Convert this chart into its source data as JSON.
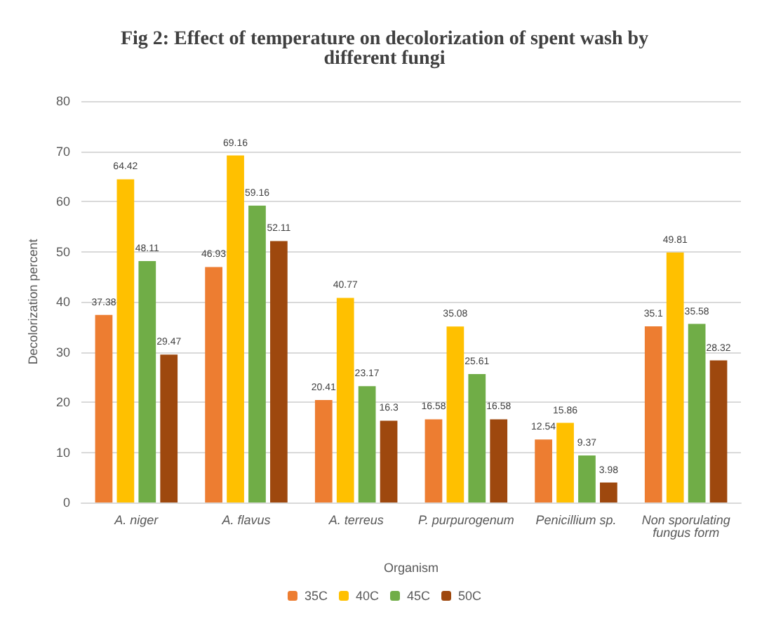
{
  "chart_data": {
    "type": "bar",
    "title": "Fig 2: Effect of temperature on decolorization of spent wash by\ndifferent fungi",
    "xlabel": "Organism",
    "ylabel": "Decolorization percent",
    "categories": [
      "A. niger",
      "A. flavus",
      "A. terreus",
      "P. purpurogenum",
      "Penicillium sp.",
      "Non sporulating\nfungus form"
    ],
    "series": [
      {
        "name": "35C",
        "color": "#ed7d31",
        "values": [
          37.38,
          46.93,
          20.41,
          16.58,
          12.54,
          35.1
        ]
      },
      {
        "name": "40C",
        "color": "#ffc000",
        "values": [
          64.42,
          69.16,
          40.77,
          35.08,
          15.86,
          49.81
        ]
      },
      {
        "name": "45C",
        "color": "#70ad47",
        "values": [
          48.11,
          59.16,
          23.17,
          25.61,
          9.37,
          35.58
        ]
      },
      {
        "name": "50C",
        "color": "#9e480e",
        "values": [
          29.47,
          52.11,
          16.3,
          16.58,
          3.98,
          28.32
        ]
      }
    ],
    "ylim": [
      0,
      80
    ],
    "yticks": [
      0,
      10,
      20,
      30,
      40,
      50,
      60,
      70,
      80
    ],
    "grid": "y",
    "legend": "bottom",
    "data_labels": true
  }
}
